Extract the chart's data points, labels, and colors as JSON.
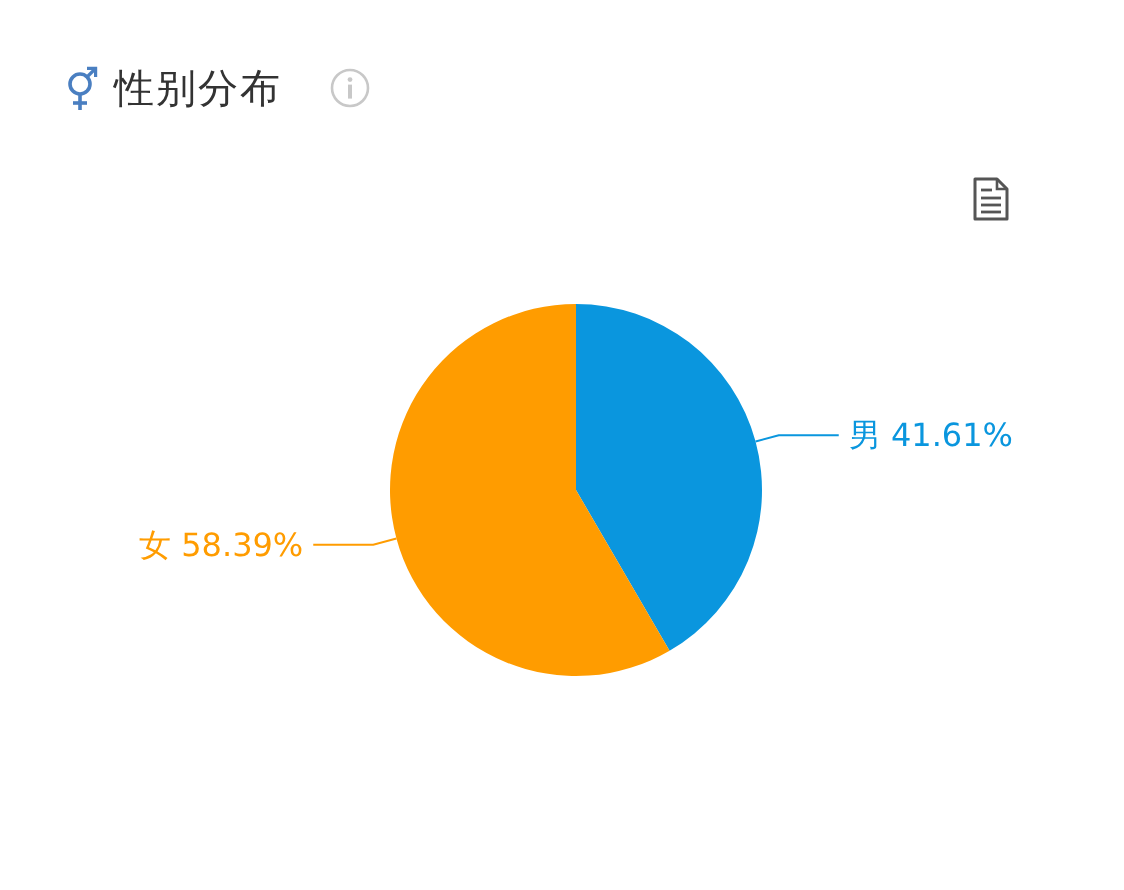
{
  "chart_data": {
    "type": "pie",
    "title": "性别分布",
    "categories": [
      "男",
      "女"
    ],
    "values": [
      41.61,
      58.39
    ],
    "colors": [
      "#0a96de",
      "#ff9c00"
    ],
    "value_labels": [
      "41.61%",
      "58.39%"
    ],
    "legend": false
  }
}
